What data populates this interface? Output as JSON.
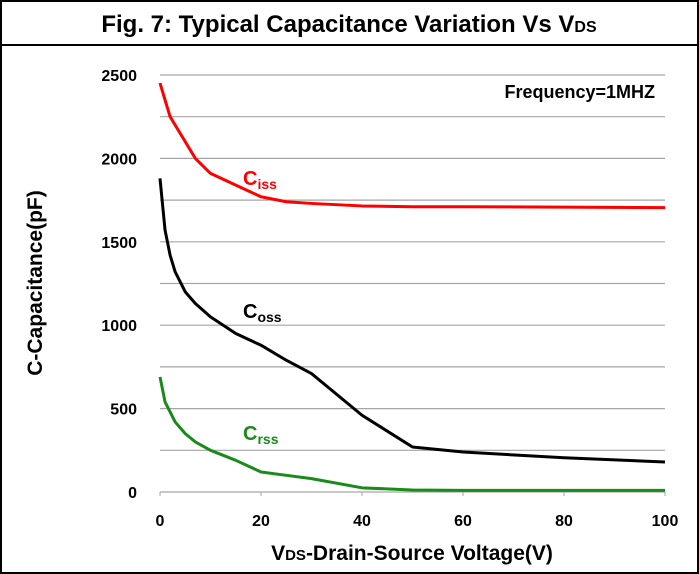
{
  "chart_data": {
    "type": "line",
    "title": [
      "Fig. 7: Typical Capacitance Variation Vs V",
      "DS"
    ],
    "xlabel": [
      "V",
      "DS",
      "-Drain-Source Voltage(V)"
    ],
    "ylabel": "C-Capacitance(pF)",
    "annotation": "Frequency=1MHZ",
    "xlim": [
      0,
      100
    ],
    "xticks": [
      0,
      20,
      40,
      60,
      80,
      100
    ],
    "ylim": [
      0,
      2500
    ],
    "yticks": [
      0,
      500,
      1000,
      1500,
      2000,
      2500
    ],
    "ygrid": [
      250,
      500,
      750,
      1000,
      1250,
      1500,
      1750,
      2000,
      2250,
      2500
    ],
    "series": [
      {
        "name": [
          "C",
          "iss"
        ],
        "color": "#ff0000",
        "x": [
          0,
          1,
          2,
          4,
          7,
          10,
          15,
          20,
          25,
          30,
          40,
          50,
          60,
          80,
          100
        ],
        "values": [
          2452,
          2350,
          2250,
          2150,
          2000,
          1910,
          1840,
          1770,
          1740,
          1730,
          1715,
          1710,
          1710,
          1708,
          1705
        ]
      },
      {
        "name": [
          "C",
          "oss"
        ],
        "color": "#000000",
        "x": [
          0,
          1,
          2,
          3,
          5,
          7,
          10,
          15,
          20,
          25,
          30,
          40,
          50,
          60,
          80,
          100
        ],
        "values": [
          1880,
          1570,
          1420,
          1320,
          1200,
          1130,
          1050,
          950,
          880,
          790,
          710,
          460,
          270,
          240,
          205,
          180
        ]
      },
      {
        "name": [
          "C",
          "rss"
        ],
        "color": "#1a8a1a",
        "x": [
          0,
          1,
          3,
          5,
          7,
          10,
          15,
          20,
          25,
          30,
          40,
          50,
          60,
          80,
          100
        ],
        "values": [
          690,
          540,
          420,
          350,
          300,
          250,
          190,
          120,
          100,
          80,
          25,
          12,
          10,
          10,
          10
        ]
      }
    ]
  }
}
